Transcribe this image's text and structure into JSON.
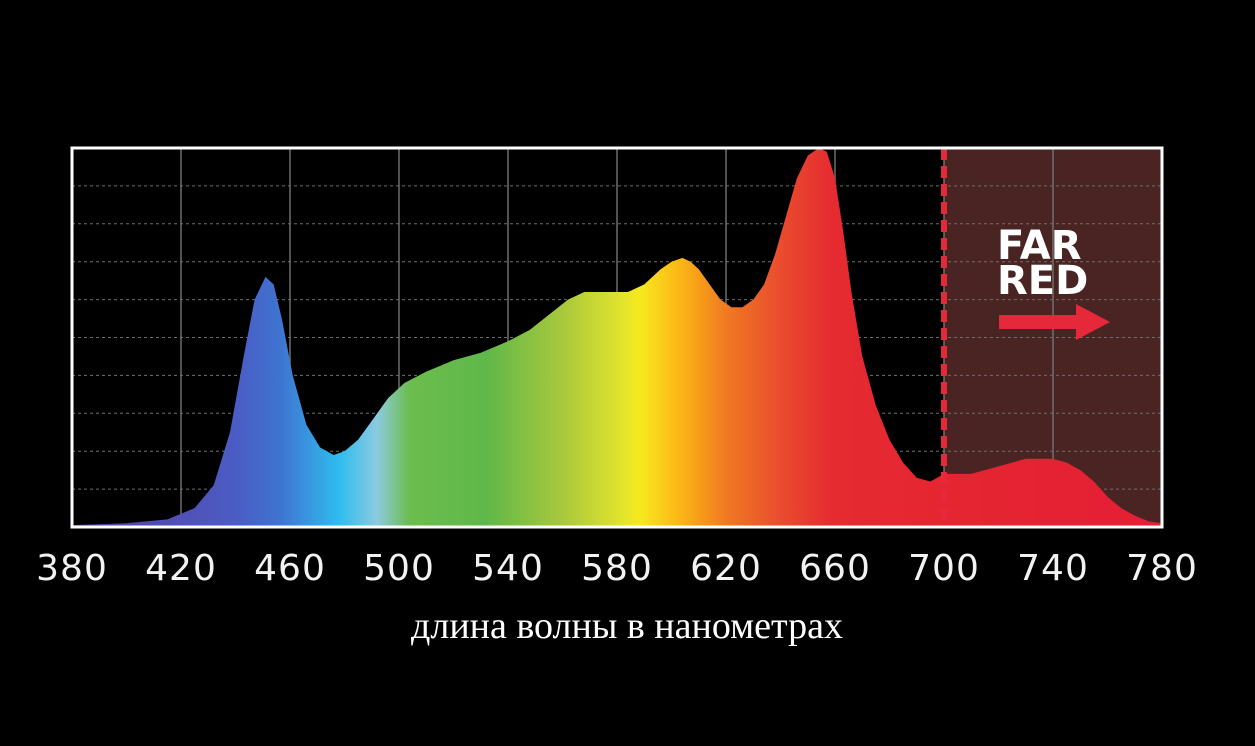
{
  "chart_data": {
    "type": "area",
    "title": "",
    "xlabel": "длина волны в нанометрах",
    "ylabel": "",
    "xlim": [
      380,
      780
    ],
    "ylim": [
      0,
      1
    ],
    "grid": true,
    "x_ticks": [
      "380",
      "420",
      "460",
      "500",
      "540",
      "580",
      "620",
      "660",
      "700",
      "740",
      "780"
    ],
    "series": [
      {
        "x": [
          380,
          400,
          415,
          425,
          432,
          438,
          443,
          447,
          451,
          454,
          457,
          461,
          466,
          471,
          476,
          480,
          485,
          490,
          496,
          502,
          510,
          520,
          530,
          540,
          548,
          555,
          562,
          568,
          573,
          578,
          584,
          590,
          596,
          600,
          604,
          607,
          610,
          614,
          618,
          622,
          626,
          630,
          634,
          638,
          642,
          646,
          650,
          654,
          657,
          660,
          663,
          666,
          670,
          675,
          680,
          685,
          690,
          695,
          700,
          705,
          710,
          715,
          720,
          725,
          730,
          735,
          740,
          745,
          750,
          755,
          760,
          765,
          770,
          775,
          780
        ],
        "values": [
          0.005,
          0.01,
          0.02,
          0.05,
          0.11,
          0.25,
          0.45,
          0.6,
          0.66,
          0.64,
          0.55,
          0.4,
          0.27,
          0.21,
          0.19,
          0.2,
          0.23,
          0.28,
          0.34,
          0.38,
          0.41,
          0.44,
          0.46,
          0.49,
          0.52,
          0.56,
          0.6,
          0.62,
          0.62,
          0.62,
          0.62,
          0.64,
          0.68,
          0.7,
          0.71,
          0.7,
          0.68,
          0.64,
          0.6,
          0.58,
          0.58,
          0.6,
          0.64,
          0.72,
          0.82,
          0.92,
          0.98,
          1.0,
          0.99,
          0.92,
          0.78,
          0.62,
          0.45,
          0.32,
          0.23,
          0.17,
          0.13,
          0.12,
          0.14,
          0.14,
          0.14,
          0.15,
          0.16,
          0.17,
          0.18,
          0.18,
          0.18,
          0.17,
          0.15,
          0.12,
          0.08,
          0.05,
          0.03,
          0.015,
          0.01
        ]
      }
    ],
    "colors": {
      "background": "#000000",
      "frame": "#ffffff",
      "grid": "#6e6e6e",
      "far_red_zone": "#4a2423",
      "far_red_line": "#e5283a",
      "arrow": "#e5283a"
    },
    "annotations": {
      "far_red_lines": [
        "FAR",
        "RED"
      ],
      "far_red_from": 700,
      "far_red_to": 780
    }
  }
}
